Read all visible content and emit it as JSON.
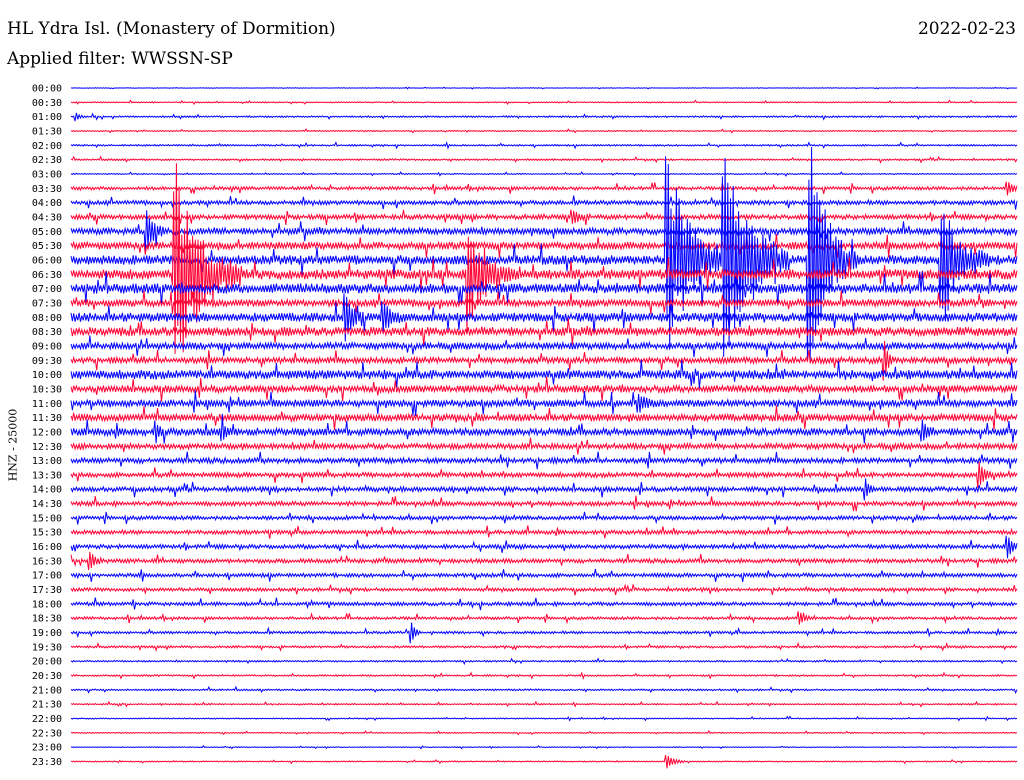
{
  "header": {
    "station": "HL Ydra Isl. (Monastery of Dormition)",
    "date": "2022-02-23",
    "filter": "Applied filter: WWSSN-SP",
    "channel": "HNZ - 25000"
  },
  "chart_data": {
    "type": "line",
    "title": "HL Ydra Isl. (Monastery of Dormition)",
    "subtitle": "Applied filter: WWSSN-SP",
    "ylabel": "HNZ - 25000",
    "colors": {
      "even": "#0000ff",
      "odd": "#ff0033"
    },
    "row_labels": [
      "00:00",
      "00:30",
      "01:00",
      "01:30",
      "02:00",
      "02:30",
      "03:00",
      "03:30",
      "04:00",
      "04:30",
      "05:00",
      "05:30",
      "06:00",
      "06:30",
      "07:00",
      "07:30",
      "08:00",
      "08:30",
      "09:00",
      "09:30",
      "10:00",
      "10:30",
      "11:00",
      "11:30",
      "12:00",
      "12:30",
      "13:00",
      "13:30",
      "14:00",
      "14:30",
      "15:00",
      "15:30",
      "16:00",
      "16:30",
      "17:00",
      "17:30",
      "18:00",
      "18:30",
      "19:00",
      "19:30",
      "20:00",
      "20:30",
      "21:00",
      "21:30",
      "22:00",
      "22:30",
      "23:00",
      "23:30"
    ],
    "noise_level": [
      0.2,
      0.4,
      0.6,
      0.4,
      0.6,
      0.6,
      0.4,
      1.2,
      1.5,
      1.7,
      2.4,
      2.6,
      3.4,
      3.6,
      3.6,
      2.6,
      3.2,
      3.2,
      2.4,
      2.2,
      3.2,
      2.6,
      2.6,
      2.6,
      2.6,
      2.0,
      1.9,
      1.7,
      1.7,
      1.6,
      1.4,
      1.4,
      1.5,
      1.5,
      1.4,
      1.2,
      1.3,
      1.0,
      0.9,
      0.8,
      0.6,
      0.6,
      0.6,
      0.5,
      0.4,
      0.4,
      0.3,
      0.4
    ],
    "events": [
      {
        "label": "06:30",
        "t": 0.11,
        "amp": 120,
        "dur": 0.07,
        "dense": true
      },
      {
        "label": "06:30",
        "t": 0.42,
        "amp": 60,
        "dur": 0.05,
        "dense": true
      },
      {
        "label": "06:00",
        "t": 0.63,
        "amp": 115,
        "dur": 0.06,
        "dense": true
      },
      {
        "label": "06:00",
        "t": 0.69,
        "amp": 130,
        "dur": 0.07,
        "dense": true
      },
      {
        "label": "06:00",
        "t": 0.78,
        "amp": 130,
        "dur": 0.05,
        "dense": true
      },
      {
        "label": "06:00",
        "t": 0.92,
        "amp": 75,
        "dur": 0.05,
        "dense": true
      },
      {
        "label": "05:00",
        "t": 0.08,
        "amp": 18,
        "dur": 0.02,
        "dense": false
      },
      {
        "label": "08:00",
        "t": 0.29,
        "amp": 20,
        "dur": 0.02,
        "dense": false
      },
      {
        "label": "08:00",
        "t": 0.33,
        "amp": 14,
        "dur": 0.02,
        "dense": false
      },
      {
        "label": "09:30",
        "t": 0.86,
        "amp": 18,
        "dur": 0.01,
        "dense": false
      },
      {
        "label": "13:30",
        "t": 0.96,
        "amp": 12,
        "dur": 0.015,
        "dense": false
      },
      {
        "label": "14:00",
        "t": 0.84,
        "amp": 9,
        "dur": 0.01,
        "dense": false
      },
      {
        "label": "16:00",
        "t": 0.99,
        "amp": 10,
        "dur": 0.015,
        "dense": false
      },
      {
        "label": "16:30",
        "t": 0.02,
        "amp": 8,
        "dur": 0.015,
        "dense": false
      },
      {
        "label": "19:00",
        "t": 0.36,
        "amp": 9,
        "dur": 0.01,
        "dense": false
      },
      {
        "label": "18:30",
        "t": 0.77,
        "amp": 6,
        "dur": 0.015,
        "dense": false
      },
      {
        "label": "23:30",
        "t": 0.63,
        "amp": 6,
        "dur": 0.02,
        "dense": false
      },
      {
        "label": "03:30",
        "t": 0.99,
        "amp": 6,
        "dur": 0.015,
        "dense": false
      },
      {
        "label": "04:30",
        "t": 0.53,
        "amp": 6,
        "dur": 0.02,
        "dense": false
      },
      {
        "label": "11:00",
        "t": 0.6,
        "amp": 7,
        "dur": 0.02,
        "dense": false
      },
      {
        "label": "12:00",
        "t": 0.09,
        "amp": 8,
        "dur": 0.01,
        "dense": false
      },
      {
        "label": "12:00",
        "t": 0.16,
        "amp": 7,
        "dur": 0.01,
        "dense": false
      },
      {
        "label": "12:00",
        "t": 0.9,
        "amp": 8,
        "dur": 0.015,
        "dense": false
      },
      {
        "label": "01:00",
        "t": 0.005,
        "amp": 4,
        "dur": 0.01,
        "dense": false
      }
    ]
  }
}
